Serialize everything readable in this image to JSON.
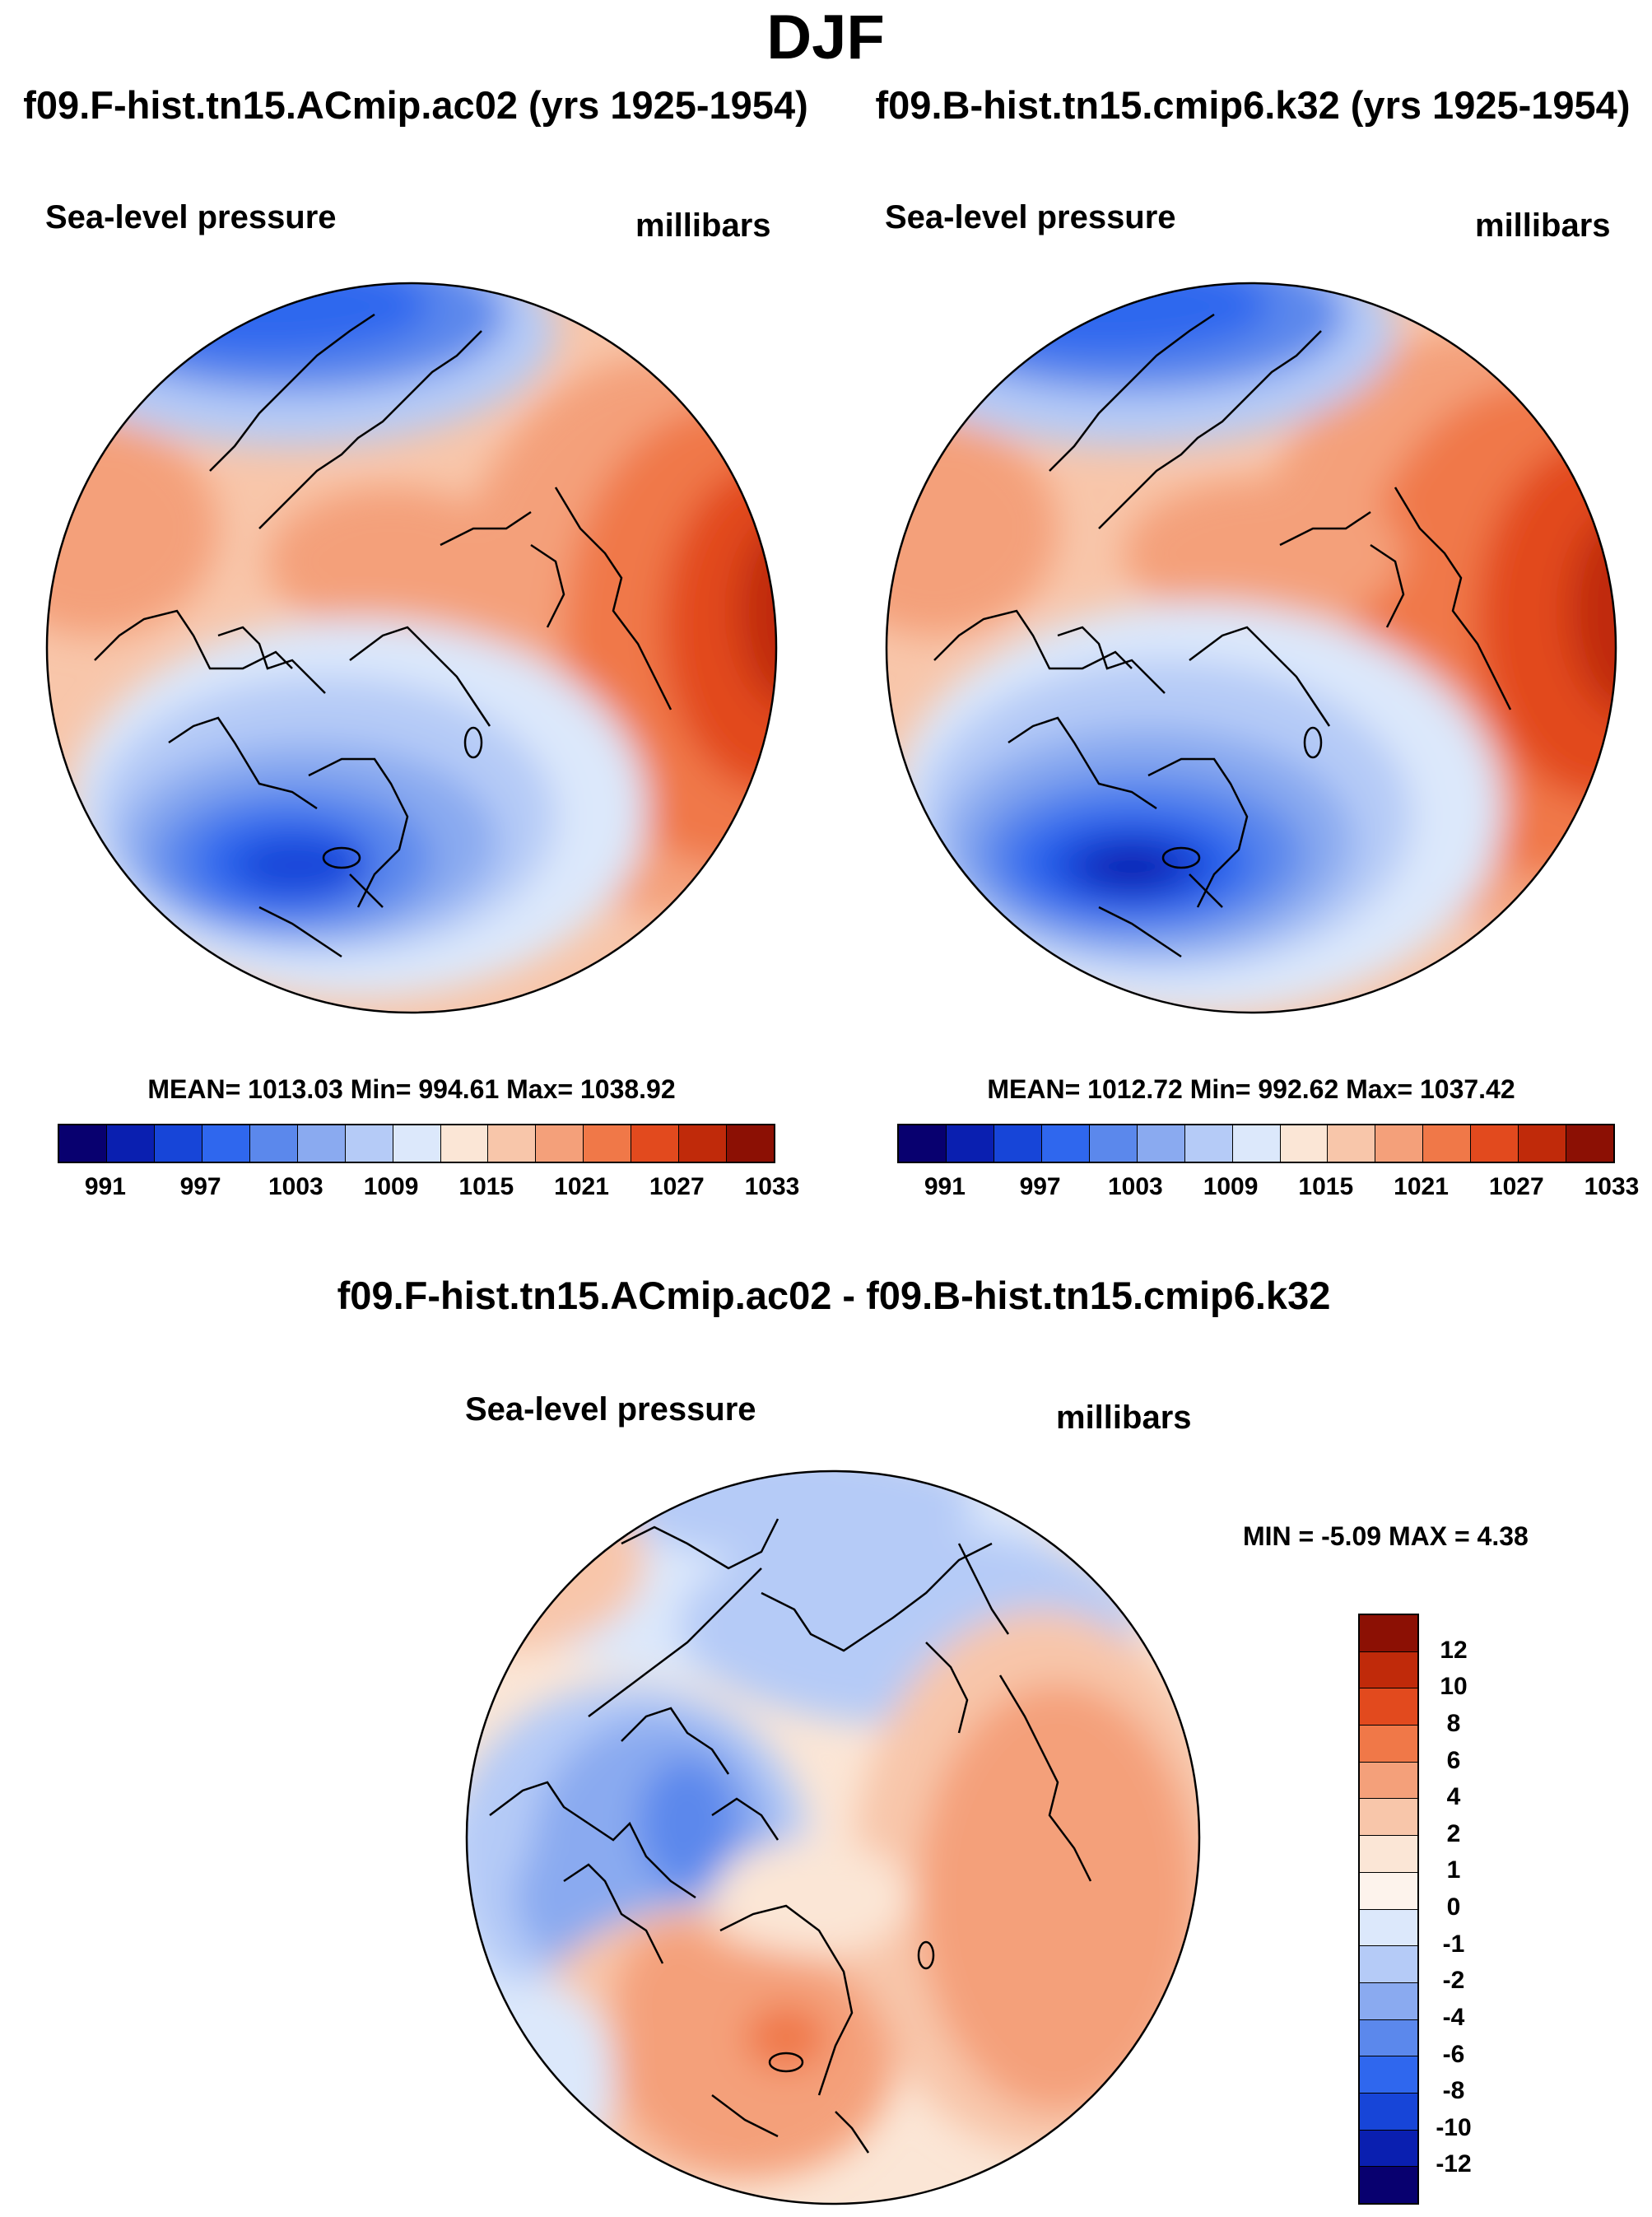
{
  "figure": {
    "season": "DJF",
    "difference_title": "f09.F-hist.tn15.ACmip.ac02 - f09.B-hist.tn15.cmip6.k32"
  },
  "panels": [
    {
      "title": "f09.F-hist.tn15.ACmip.ac02 (yrs 1925-1954)",
      "variable": "Sea-level pressure",
      "units": "millibars",
      "stats": "MEAN= 1013.03  Min= 994.61  Max= 1038.92"
    },
    {
      "title": "f09.B-hist.tn15.cmip6.k32 (yrs 1925-1954)",
      "variable": "Sea-level pressure",
      "units": "millibars",
      "stats": "MEAN= 1012.72  Min= 992.62  Max= 1037.42"
    }
  ],
  "difference": {
    "variable": "Sea-level pressure",
    "units": "millibars",
    "minmax": "MIN =  -5.09 MAX =   4.38"
  },
  "colorbar_abs": {
    "labels": [
      "991",
      "997",
      "1003",
      "1009",
      "1015",
      "1021",
      "1027",
      "1033"
    ],
    "colors": [
      "#08006f",
      "#0a1fb0",
      "#1745d8",
      "#2f67ee",
      "#5b88ec",
      "#8aaaf0",
      "#b5cbf7",
      "#dce8fb",
      "#fbe6d6",
      "#f8c6aa",
      "#f4a07a",
      "#f07848",
      "#e24a1e",
      "#c02a0a",
      "#8c1004"
    ]
  },
  "colorbar_diff": {
    "labels": [
      "12",
      "10",
      "8",
      "6",
      "4",
      "2",
      "1",
      "0",
      "-1",
      "-2",
      "-4",
      "-6",
      "-8",
      "-10",
      "-12"
    ],
    "colors": [
      "#8c1004",
      "#c02a0a",
      "#e24a1e",
      "#f07848",
      "#f4a07a",
      "#f8c6aa",
      "#fbe6d6",
      "#fdf3ec",
      "#dce8fb",
      "#b5cbf7",
      "#8aaaf0",
      "#5b88ec",
      "#2f67ee",
      "#1745d8",
      "#0a1fb0",
      "#08006f"
    ]
  }
}
